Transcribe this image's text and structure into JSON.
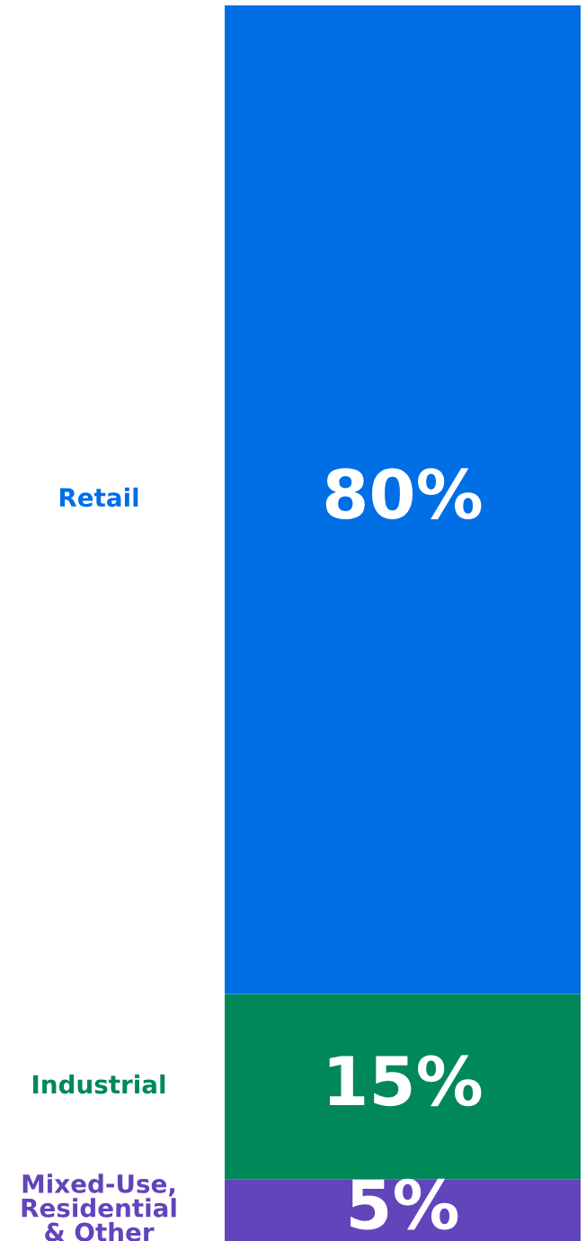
{
  "chart_data": {
    "type": "bar",
    "stacked": true,
    "categories": [
      null
    ],
    "ylim": [
      0,
      100
    ],
    "tick_labels": false,
    "series": [
      {
        "name": "Mixed-Use,\nResidential\n& Other",
        "color": "#6244bb",
        "values": [
          5
        ],
        "value_labels": [
          "5%"
        ]
      },
      {
        "name": "Industrial",
        "color": "#008859",
        "values": [
          15
        ],
        "value_labels": [
          "15%"
        ]
      },
      {
        "name": "Retail",
        "color": "#006fe6",
        "values": [
          80
        ],
        "value_labels": [
          "80%"
        ]
      }
    ]
  }
}
